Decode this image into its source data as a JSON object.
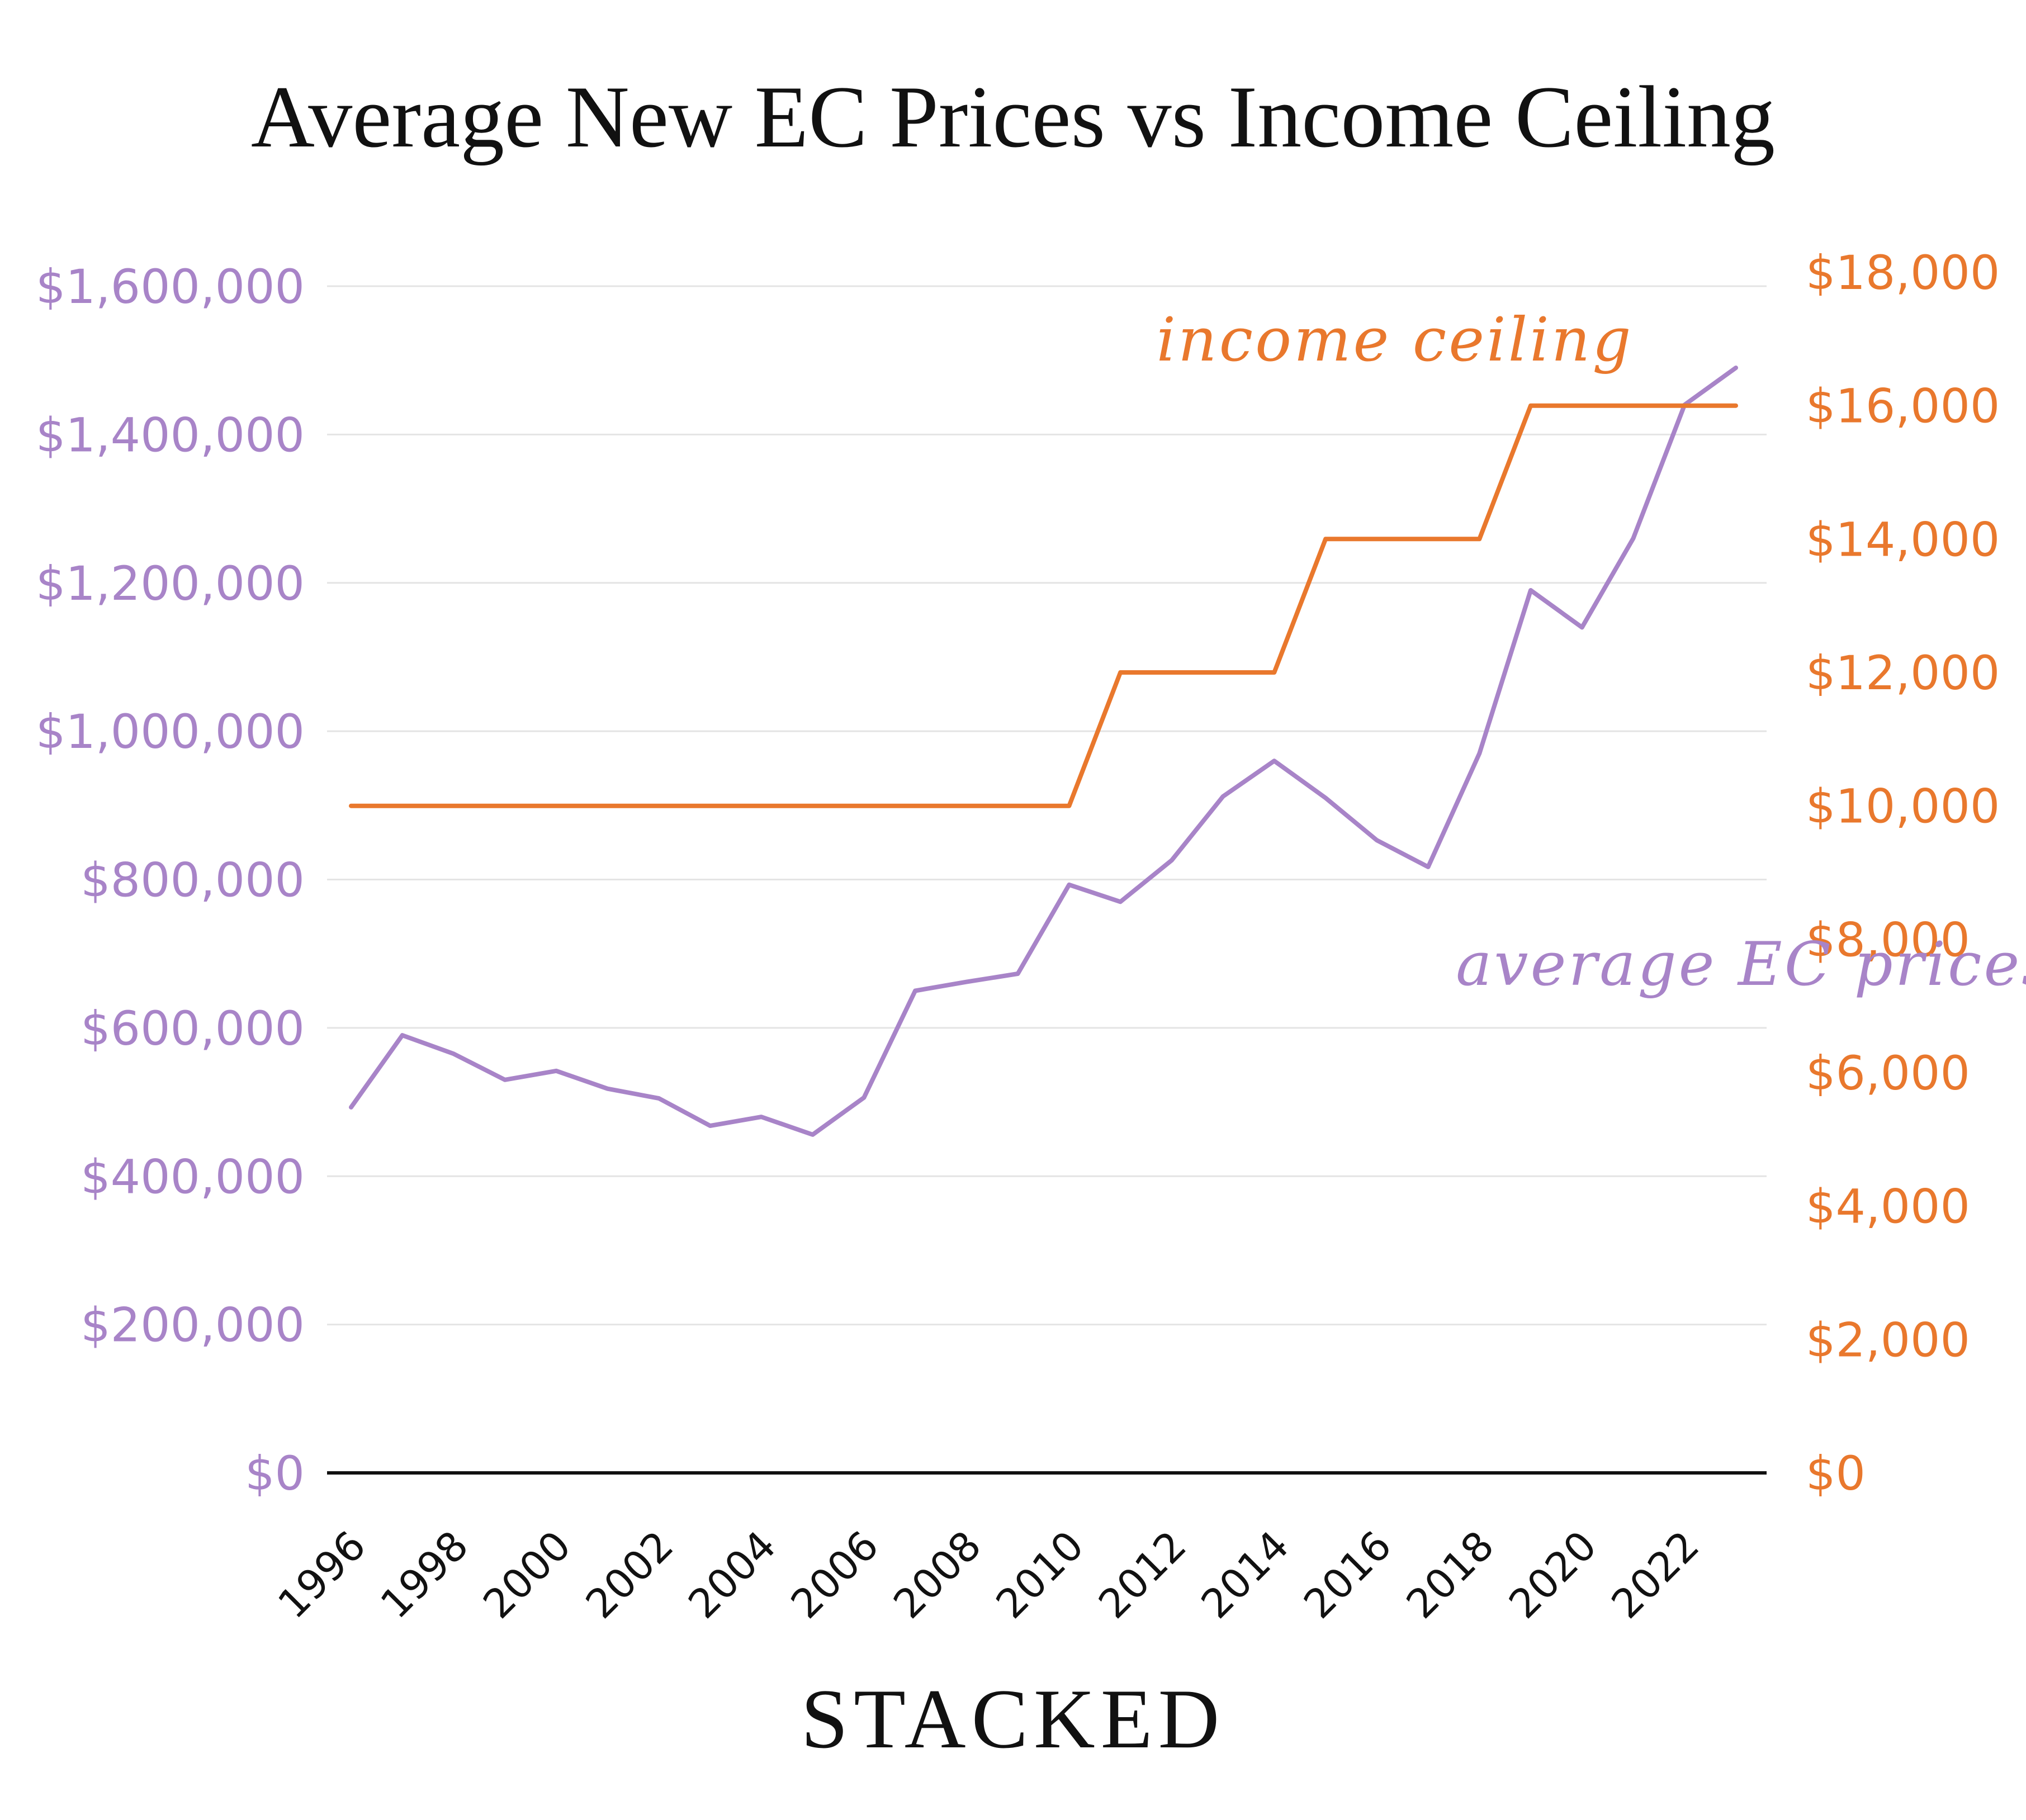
{
  "chart_data": {
    "type": "line",
    "title": "Average New EC Prices vs Income Ceiling",
    "x": [
      1996,
      1997,
      1998,
      1999,
      2000,
      2001,
      2002,
      2003,
      2004,
      2005,
      2006,
      2007,
      2008,
      2009,
      2010,
      2011,
      2012,
      2013,
      2014,
      2015,
      2016,
      2017,
      2018,
      2019,
      2020,
      2021,
      2022,
      2023
    ],
    "x_tick_labels": [
      "1996",
      "1998",
      "2000",
      "2002",
      "2004",
      "2006",
      "2008",
      "2010",
      "2012",
      "2014",
      "2016",
      "2018",
      "2020",
      "2022"
    ],
    "y_left": {
      "ylim": [
        0,
        1600000
      ],
      "tick_labels": [
        "$0",
        "$200,000",
        "$400,000",
        "$600,000",
        "$800,000",
        "$1,000,000",
        "$1,200,000",
        "$1,400,000",
        "$1,600,000"
      ],
      "color": "#a884c8"
    },
    "y_right": {
      "ylim": [
        0,
        18000
      ],
      "tick_labels": [
        "$0",
        "$2,000",
        "$4,000",
        "$6,000",
        "$8,000",
        "$10,000",
        "$12,000",
        "$14,000",
        "$16,000",
        "$18,000"
      ],
      "color": "#e9782d"
    },
    "series": [
      {
        "name": "average EC prices",
        "axis": "left",
        "color": "#a884c8",
        "values": [
          493000,
          590000,
          565000,
          530000,
          542000,
          518000,
          505000,
          468000,
          480000,
          456000,
          506000,
          650000,
          662000,
          673000,
          793000,
          770000,
          826000,
          912000,
          960000,
          910000,
          853000,
          817000,
          970000,
          1190000,
          1140000,
          1260000,
          1440000,
          1490000
        ]
      },
      {
        "name": "income ceiling",
        "axis": "right",
        "color": "#e9782d",
        "values": [
          10000,
          10000,
          10000,
          10000,
          10000,
          10000,
          10000,
          10000,
          10000,
          10000,
          10000,
          10000,
          10000,
          10000,
          10000,
          12000,
          12000,
          12000,
          12000,
          14000,
          14000,
          14000,
          14000,
          16000,
          16000,
          16000,
          16000,
          16000
        ]
      }
    ],
    "grid": true,
    "legend": "none"
  },
  "brand": "STACKED"
}
